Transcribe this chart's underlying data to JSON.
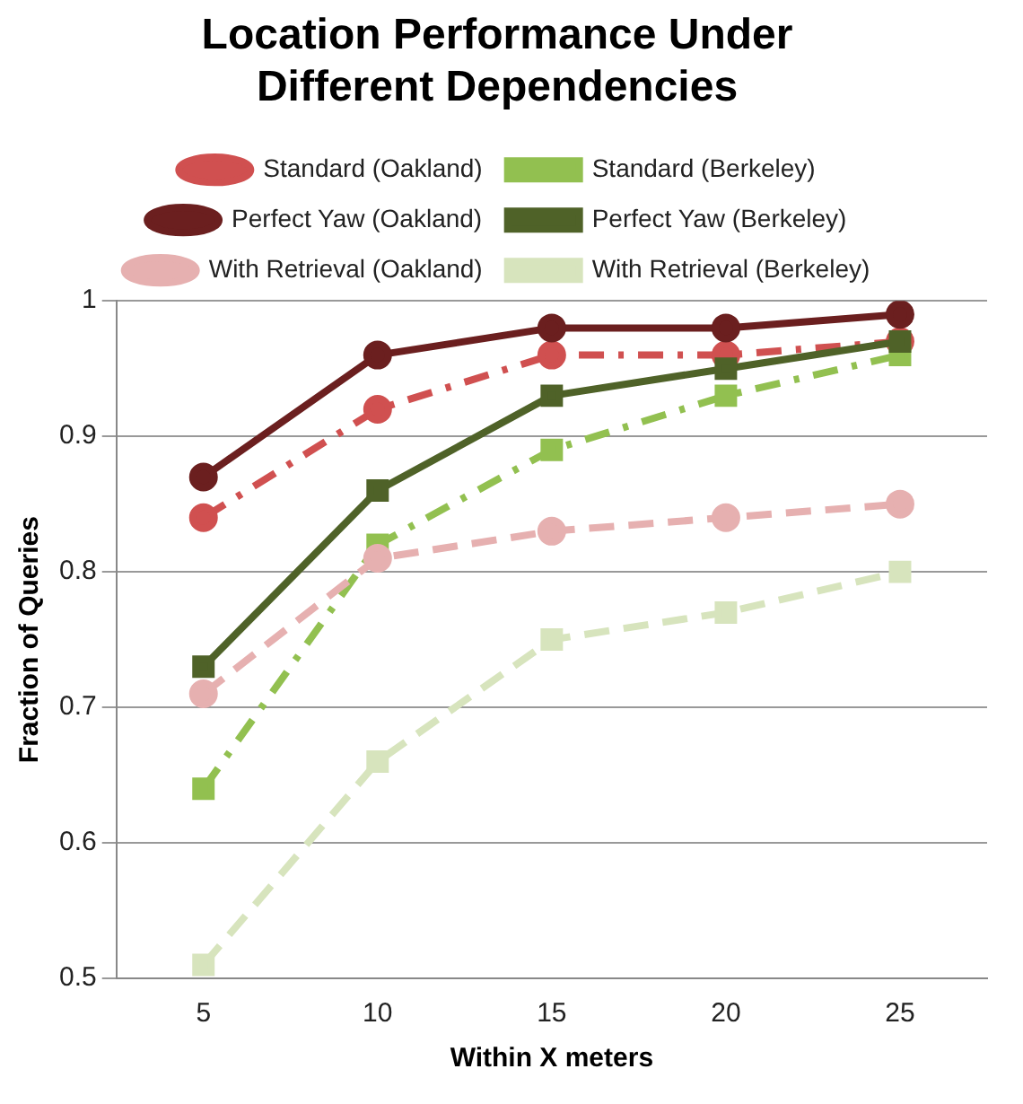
{
  "chart_data": {
    "type": "line",
    "title": "Location Performance Under Different Dependencies",
    "xlabel": "Within X meters",
    "ylabel": "Fraction of Queries",
    "categories": [
      "5",
      "10",
      "15",
      "20",
      "25"
    ],
    "series": [
      {
        "name": "Standard (Oakland)",
        "color": "#d05050",
        "marker": "circle",
        "line_style": "dotted",
        "values": [
          0.84,
          0.92,
          0.96,
          0.96,
          0.97
        ]
      },
      {
        "name": "Standard (Berkeley)",
        "color": "#92c050",
        "marker": "square",
        "line_style": "dotted",
        "values": [
          0.64,
          0.82,
          0.89,
          0.93,
          0.96
        ]
      },
      {
        "name": "Perfect Yaw (Oakland)",
        "color": "#6b1f1f",
        "marker": "circle",
        "line_style": "solid",
        "values": [
          0.87,
          0.96,
          0.98,
          0.98,
          0.99
        ]
      },
      {
        "name": "Perfect Yaw (Berkeley)",
        "color": "#4f6228",
        "marker": "square",
        "line_style": "solid",
        "values": [
          0.73,
          0.86,
          0.93,
          0.95,
          0.97
        ]
      },
      {
        "name": "With Retrieval (Oakland)",
        "color": "#e6b0b0",
        "marker": "circle",
        "line_style": "dashed",
        "values": [
          0.71,
          0.81,
          0.83,
          0.84,
          0.85
        ]
      },
      {
        "name": "With Retrieval (Berkeley)",
        "color": "#d7e4bd",
        "marker": "square",
        "line_style": "dashed",
        "values": [
          0.51,
          0.66,
          0.75,
          0.77,
          0.8
        ]
      }
    ],
    "ylim": [
      0.5,
      1
    ],
    "yticks": [
      0.5,
      0.6,
      0.7,
      0.8,
      0.9,
      1
    ],
    "grid": "y",
    "legend": "top"
  }
}
